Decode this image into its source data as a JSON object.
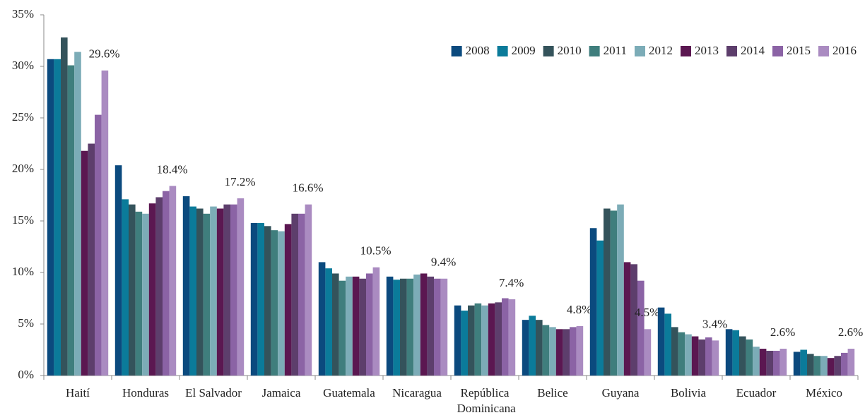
{
  "chart_data": {
    "type": "bar",
    "categories": [
      "Haití",
      "Honduras",
      "El Salvador",
      "Jamaica",
      "Guatemala",
      "Nicaragua",
      "República Dominicana",
      "Belice",
      "Guyana",
      "Bolivia",
      "Ecuador",
      "México"
    ],
    "series": [
      {
        "name": "2008",
        "color": "#0b4a7e",
        "values": [
          30.7,
          20.4,
          17.4,
          14.8,
          11.0,
          9.6,
          6.8,
          5.4,
          14.3,
          6.6,
          4.5,
          2.3
        ]
      },
      {
        "name": "2009",
        "color": "#0b7b9a",
        "values": [
          30.7,
          17.1,
          16.4,
          14.8,
          10.4,
          9.3,
          6.3,
          5.8,
          13.1,
          6.0,
          4.4,
          2.5
        ]
      },
      {
        "name": "2010",
        "color": "#34535b",
        "values": [
          32.8,
          16.6,
          16.2,
          14.5,
          9.9,
          9.4,
          6.8,
          5.4,
          16.2,
          4.7,
          3.8,
          2.1
        ]
      },
      {
        "name": "2011",
        "color": "#3f7e7d",
        "values": [
          30.1,
          15.9,
          15.7,
          14.1,
          9.2,
          9.4,
          7.0,
          4.9,
          16.0,
          4.2,
          3.5,
          1.9
        ]
      },
      {
        "name": "2012",
        "color": "#7cacb7",
        "values": [
          31.4,
          15.7,
          16.4,
          14.0,
          9.6,
          9.8,
          6.8,
          4.7,
          16.6,
          4.0,
          2.8,
          1.9
        ]
      },
      {
        "name": "2013",
        "color": "#5b1751",
        "values": [
          21.8,
          16.7,
          16.2,
          14.7,
          9.6,
          9.9,
          7.0,
          4.5,
          11.0,
          3.8,
          2.6,
          1.7
        ]
      },
      {
        "name": "2014",
        "color": "#5d3e6c",
        "values": [
          22.5,
          17.3,
          16.6,
          15.7,
          9.4,
          9.6,
          7.1,
          4.5,
          10.8,
          3.5,
          2.4,
          1.9
        ]
      },
      {
        "name": "2015",
        "color": "#8b63a5",
        "values": [
          25.3,
          17.9,
          16.6,
          15.7,
          9.9,
          9.4,
          7.5,
          4.7,
          9.2,
          3.7,
          2.4,
          2.2
        ]
      },
      {
        "name": "2016",
        "color": "#aa8bc1",
        "values": [
          29.6,
          18.4,
          17.2,
          16.6,
          10.5,
          9.4,
          7.4,
          4.8,
          4.5,
          3.4,
          2.6,
          2.6
        ],
        "value_labels": [
          "29.6%",
          "18.4%",
          "17.2%",
          "16.6%",
          "10.5%",
          "9.4%",
          "7.4%",
          "4.8%",
          "4.5%",
          "3.4%",
          "2.6%",
          "2.6%"
        ]
      }
    ],
    "ylim": [
      0,
      35
    ],
    "yticks": [
      {
        "value": 0,
        "label": "0%"
      },
      {
        "value": 5,
        "label": "5%"
      },
      {
        "value": 10,
        "label": "10%"
      },
      {
        "value": 15,
        "label": "15%"
      },
      {
        "value": 20,
        "label": "20%"
      },
      {
        "value": 25,
        "label": "25%"
      },
      {
        "value": 30,
        "label": "30%"
      },
      {
        "value": 35,
        "label": "35%"
      }
    ],
    "legend": "top-right"
  }
}
